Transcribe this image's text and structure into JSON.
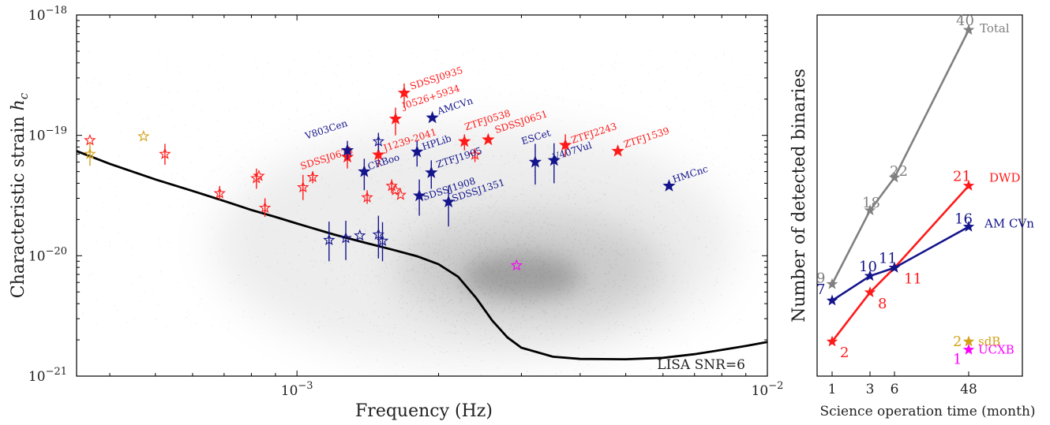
{
  "chart_data": [
    {
      "type": "scatter",
      "xlabel": "Frequency (Hz)",
      "ylabel": "Characteristic strain h_c",
      "xscale": "log",
      "yscale": "log",
      "xlim": [
        0.00034,
        0.01
      ],
      "ylim": [
        1e-21,
        1e-18
      ],
      "x_ticks": [
        {
          "value": 0.001,
          "label": "10^-3"
        },
        {
          "value": 0.01,
          "label": "10^-2"
        }
      ],
      "y_ticks": [
        {
          "value": 1e-21,
          "label": "10^-21"
        },
        {
          "value": 1e-20,
          "label": "10^-20"
        },
        {
          "value": 1e-19,
          "label": "10^-19"
        },
        {
          "value": 1e-18,
          "label": "10^-18"
        }
      ],
      "sensitivity_curve": {
        "label": "LISA SNR=6",
        "color": "#000000",
        "points": [
          [
            0.00034,
            7.4e-20
          ],
          [
            0.0004,
            5.8e-20
          ],
          [
            0.0005,
            4.3e-20
          ],
          [
            0.0006,
            3.45e-20
          ],
          [
            0.0007,
            2.85e-20
          ],
          [
            0.0008,
            2.4e-20
          ],
          [
            0.0009,
            2.1e-20
          ],
          [
            0.001,
            1.85e-20
          ],
          [
            0.0012,
            1.5e-20
          ],
          [
            0.0014,
            1.28e-20
          ],
          [
            0.0016,
            1.12e-20
          ],
          [
            0.0018,
            9.9e-21
          ],
          [
            0.002,
            8.5e-21
          ],
          [
            0.0022,
            6.7e-21
          ],
          [
            0.0024,
            4.5e-21
          ],
          [
            0.0026,
            2.9e-21
          ],
          [
            0.0028,
            2.1e-21
          ],
          [
            0.003,
            1.72e-21
          ],
          [
            0.0035,
            1.45e-21
          ],
          [
            0.004,
            1.39e-21
          ],
          [
            0.005,
            1.38e-21
          ],
          [
            0.006,
            1.42e-21
          ],
          [
            0.007,
            1.52e-21
          ],
          [
            0.008,
            1.65e-21
          ],
          [
            0.009,
            1.78e-21
          ],
          [
            0.01,
            1.92e-21
          ]
        ]
      },
      "background": {
        "description_free": true,
        "peak": [
          0.003,
          6.8e-21
        ]
      },
      "series": [
        {
          "name": "DWD",
          "color": "#ff1a1a",
          "points": [
            {
              "x": 0.00169,
              "y": 2.25e-19,
              "err": [
                1.7e-19,
                2.7e-19
              ],
              "label": "SDSSJ0935",
              "filled": true
            },
            {
              "x": 0.00162,
              "y": 1.37e-19,
              "err": [
                1e-19,
                1.7e-19
              ],
              "label": "J0526+5934",
              "filled": true
            },
            {
              "x": 0.00227,
              "y": 8.9e-20,
              "err": [
                7.5e-20,
                1.02e-19
              ],
              "label": "ZTFJ0538",
              "filled": true
            },
            {
              "x": 0.00255,
              "y": 9.2e-20,
              "label": "SDSSJ0651",
              "filled": true
            },
            {
              "x": 0.00372,
              "y": 8.3e-20,
              "err": [
                6.6e-20,
                1.02e-19
              ],
              "label": "ZTFJ2243",
              "filled": true
            },
            {
              "x": 0.00481,
              "y": 7.4e-20,
              "label": "ZTFJ1539",
              "filled": true
            },
            {
              "x": 0.00149,
              "y": 6.9e-20,
              "err": [
                5.5e-20,
                8.5e-20
              ],
              "label": "J1239-2041",
              "filled": true
            },
            {
              "x": 0.00128,
              "y": 6.6e-20,
              "err": [
                5.3e-20,
                8e-20
              ],
              "label": "SDSSJ0634",
              "filled": true
            },
            {
              "x": 0.000363,
              "y": 9.1e-20,
              "filled": false
            },
            {
              "x": 0.000524,
              "y": 7e-20,
              "err": [
                5.7e-20,
                8.5e-20
              ],
              "filled": false
            },
            {
              "x": 0.000685,
              "y": 3.3e-20,
              "err": [
                2.9e-20,
                3.8e-20
              ],
              "filled": false
            },
            {
              "x": 0.00082,
              "y": 4.4e-20,
              "err": [
                3.6e-20,
                5.3e-20
              ],
              "filled": false
            },
            {
              "x": 0.00083,
              "y": 4.6e-20,
              "filled": false
            },
            {
              "x": 0.000855,
              "y": 2.5e-20,
              "err": [
                2.1e-20,
                3e-20
              ],
              "filled": false
            },
            {
              "x": 0.00103,
              "y": 3.7e-20,
              "err": [
                2.9e-20,
                4.7e-20
              ],
              "filled": false
            },
            {
              "x": 0.00108,
              "y": 4.5e-20,
              "err": [
                4e-20,
                5e-20
              ],
              "filled": false
            },
            {
              "x": 0.00141,
              "y": 3.05e-20,
              "err": [
                2.7e-20,
                3.5e-20
              ],
              "filled": false
            },
            {
              "x": 0.00159,
              "y": 3.8e-20,
              "err": [
                3.3e-20,
                4.3e-20
              ],
              "filled": false
            },
            {
              "x": 0.00162,
              "y": 3.5e-20,
              "filled": false
            },
            {
              "x": 0.00166,
              "y": 3.2e-20,
              "filled": false
            },
            {
              "x": 0.00239,
              "y": 6.9e-20,
              "err": [
                6e-20,
                7.8e-20
              ],
              "filled": false
            }
          ]
        },
        {
          "name": "AM CVn",
          "color": "#14148c",
          "points": [
            {
              "x": 0.00194,
              "y": 1.4e-19,
              "label": "AMCVn",
              "filled": true
            },
            {
              "x": 0.00128,
              "y": 7.5e-20,
              "err": [
                6.3e-20,
                9e-20
              ],
              "label": "V803Cen",
              "filled": true
            },
            {
              "x": 0.0018,
              "y": 7.3e-20,
              "err": [
                5.5e-20,
                9e-20
              ],
              "label": "HPLib",
              "filled": true
            },
            {
              "x": 0.00139,
              "y": 5e-20,
              "err": [
                3.5e-20,
                6.4e-20
              ],
              "label": "CRBoo",
              "filled": true
            },
            {
              "x": 0.00193,
              "y": 4.9e-20,
              "err": [
                3.6e-20,
                6.2e-20
              ],
              "label": "ZTFJ1905",
              "filled": true
            },
            {
              "x": 0.00321,
              "y": 6e-20,
              "err": [
                3.9e-20,
                8.5e-20
              ],
              "label": "ESCet",
              "filled": true
            },
            {
              "x": 0.00352,
              "y": 6.2e-20,
              "err": [
                4e-20,
                8.6e-20
              ],
              "label": "V407Vul",
              "filled": true
            },
            {
              "x": 0.00182,
              "y": 3.15e-20,
              "err": [
                2.15e-20,
                4.3e-20
              ],
              "label": "SDSSJ1908",
              "filled": true
            },
            {
              "x": 0.0021,
              "y": 2.8e-20,
              "err": [
                1.75e-20,
                3.8e-20
              ],
              "label": "SDSSJ1351",
              "filled": true
            },
            {
              "x": 0.00618,
              "y": 3.8e-20,
              "label": "HMCnc",
              "filled": true
            },
            {
              "x": 0.00117,
              "y": 1.35e-20,
              "err": [
                9e-21,
                1.92e-20
              ],
              "filled": false
            },
            {
              "x": 0.00127,
              "y": 1.4e-20,
              "err": [
                9.2e-21,
                1.95e-20
              ],
              "filled": false
            },
            {
              "x": 0.00136,
              "y": 1.47e-20,
              "filled": false
            },
            {
              "x": 0.00149,
              "y": 1.5e-20,
              "err": [
                9.5e-21,
                2.15e-20
              ],
              "filled": false
            },
            {
              "x": 0.00152,
              "y": 1.33e-20,
              "err": [
                9e-21,
                1.9e-20
              ],
              "filled": false
            },
            {
              "x": 0.00149,
              "y": 8.9e-20,
              "err": [
                7.4e-20,
                1.05e-19
              ],
              "filled": false
            }
          ]
        },
        {
          "name": "sdB",
          "color": "#d4a017",
          "points": [
            {
              "x": 0.000363,
              "y": 7e-20,
              "err": [
                5.6e-20,
                8.7e-20
              ],
              "filled": false
            },
            {
              "x": 0.000472,
              "y": 9.8e-20,
              "filled": false
            }
          ]
        },
        {
          "name": "UCXB",
          "color": "#ff00ff",
          "points": [
            {
              "x": 0.00293,
              "y": 8.3e-21,
              "filled": false
            }
          ]
        }
      ]
    },
    {
      "type": "line",
      "xlabel": "Science operation time (month)",
      "ylabel": "Number of detected binaries",
      "x_categories": [
        "1",
        "3",
        "6",
        "48"
      ],
      "series": [
        {
          "name": "Total",
          "color": "#808080",
          "values": [
            9,
            18,
            22,
            40
          ],
          "count_labels": [
            "9",
            "18",
            "22",
            "40"
          ]
        },
        {
          "name": "DWD",
          "color": "#ff1a1a",
          "values": [
            2,
            8,
            11,
            21
          ],
          "count_labels": [
            "2",
            "8",
            "11",
            "21"
          ]
        },
        {
          "name": "AM CVn",
          "color": "#14148c",
          "values": [
            7,
            10,
            11,
            16
          ],
          "count_labels": [
            "7",
            "10",
            "11",
            "16"
          ]
        },
        {
          "name": "sdB",
          "color": "#d4a017",
          "values": [
            null,
            null,
            null,
            2
          ],
          "count_labels": [
            "",
            "",
            "",
            "2"
          ]
        },
        {
          "name": "UCXB",
          "color": "#ff00ff",
          "values": [
            null,
            null,
            null,
            1
          ],
          "count_labels": [
            "",
            "",
            "",
            "1"
          ]
        }
      ]
    }
  ]
}
